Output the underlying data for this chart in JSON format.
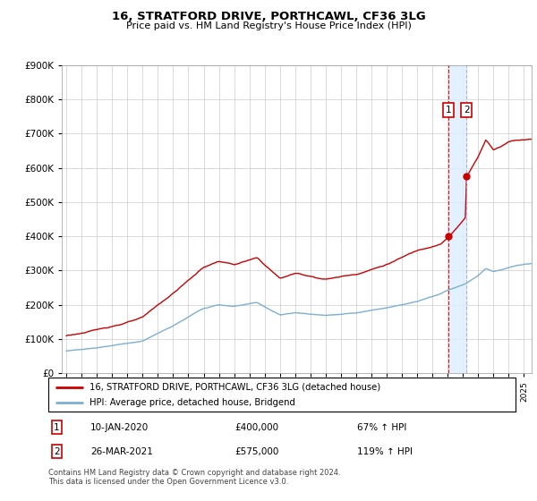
{
  "title": "16, STRATFORD DRIVE, PORTHCAWL, CF36 3LG",
  "subtitle": "Price paid vs. HM Land Registry's House Price Index (HPI)",
  "legend_line1": "16, STRATFORD DRIVE, PORTHCAWL, CF36 3LG (detached house)",
  "legend_line2": "HPI: Average price, detached house, Bridgend",
  "annotation1_date": "10-JAN-2020",
  "annotation1_price": "£400,000",
  "annotation1_hpi": "67% ↑ HPI",
  "annotation2_date": "26-MAR-2021",
  "annotation2_price": "£575,000",
  "annotation2_hpi": "119% ↑ HPI",
  "footnote": "Contains HM Land Registry data © Crown copyright and database right 2024.\nThis data is licensed under the Open Government Licence v3.0.",
  "line1_color": "#cc0000",
  "line2_color": "#7bafd4",
  "shade_color": "#ddeeff",
  "ylim": [
    0,
    900000
  ],
  "yticks": [
    0,
    100000,
    200000,
    300000,
    400000,
    500000,
    600000,
    700000,
    800000,
    900000
  ],
  "sale1_year": 2020.03,
  "sale1_price": 400000,
  "sale2_year": 2021.23,
  "sale2_price": 575000
}
